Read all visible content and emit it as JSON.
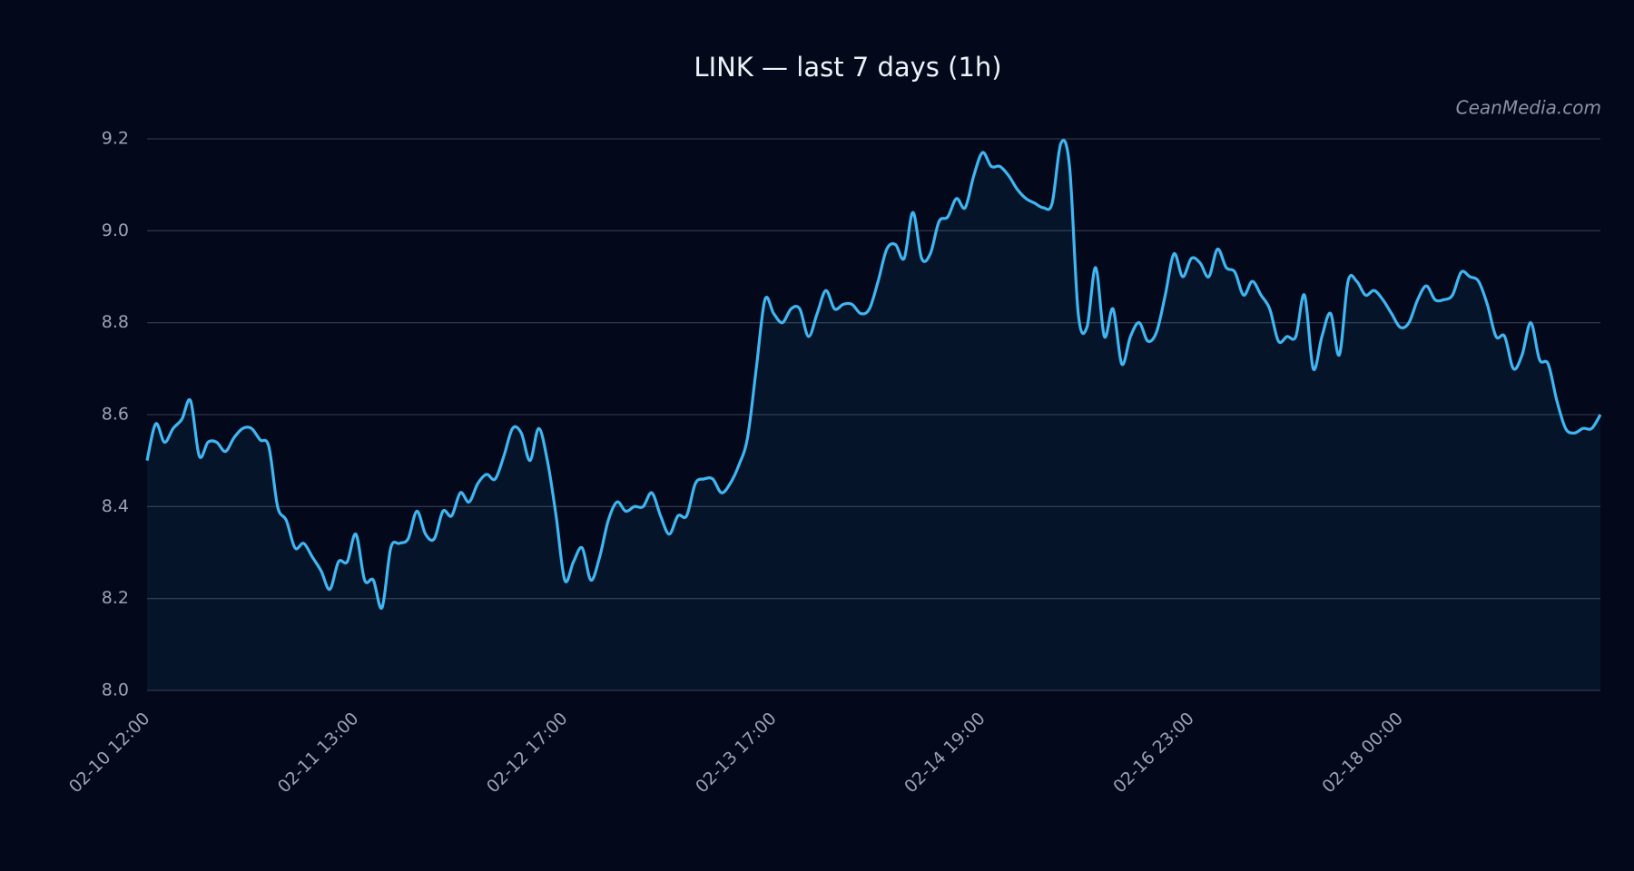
{
  "chart_data": {
    "type": "line",
    "title": "LINK — last 7 days (1h)",
    "watermark": "CeanMedia.com",
    "categories": [
      "02-10 12:00",
      null,
      null,
      null,
      null,
      null,
      null,
      null,
      null,
      null,
      null,
      null,
      null,
      null,
      null,
      null,
      null,
      null,
      null,
      null,
      null,
      null,
      null,
      null,
      "02-11 13:00",
      null,
      null,
      null,
      null,
      null,
      null,
      null,
      null,
      null,
      null,
      null,
      null,
      null,
      null,
      null,
      null,
      null,
      null,
      null,
      null,
      null,
      null,
      null,
      "02-12 17:00",
      null,
      null,
      null,
      null,
      null,
      null,
      null,
      null,
      null,
      null,
      null,
      null,
      null,
      null,
      null,
      null,
      null,
      null,
      null,
      null,
      null,
      null,
      null,
      "02-13 17:00",
      null,
      null,
      null,
      null,
      null,
      null,
      null,
      null,
      null,
      null,
      null,
      null,
      null,
      null,
      null,
      null,
      null,
      null,
      null,
      null,
      null,
      null,
      null,
      "02-14 19:00",
      null,
      null,
      null,
      null,
      null,
      null,
      null,
      null,
      null,
      null,
      null,
      null,
      null,
      null,
      null,
      null,
      null,
      null,
      null,
      null,
      null,
      null,
      null,
      "02-16 23:00",
      null,
      null,
      null,
      null,
      null,
      null,
      null,
      null,
      null,
      null,
      null,
      null,
      null,
      null,
      null,
      null,
      null,
      null,
      null,
      null,
      null,
      null,
      null,
      "02-18 00:00",
      null,
      null,
      null,
      null,
      null,
      null,
      null,
      null,
      null,
      null,
      null,
      null,
      null,
      null,
      null,
      null,
      null,
      null,
      null,
      null,
      null,
      null,
      null
    ],
    "values": [
      8.5,
      8.58,
      8.54,
      8.57,
      8.59,
      8.63,
      8.51,
      8.54,
      8.54,
      8.52,
      8.55,
      8.57,
      8.57,
      8.545,
      8.53,
      8.4,
      8.37,
      8.31,
      8.32,
      8.29,
      8.26,
      8.22,
      8.28,
      8.28,
      8.34,
      8.24,
      8.24,
      8.18,
      8.31,
      8.32,
      8.33,
      8.39,
      8.34,
      8.33,
      8.39,
      8.38,
      8.43,
      8.41,
      8.45,
      8.47,
      8.46,
      8.51,
      8.57,
      8.56,
      8.5,
      8.57,
      8.5,
      8.38,
      8.24,
      8.28,
      8.31,
      8.24,
      8.29,
      8.37,
      8.41,
      8.39,
      8.4,
      8.4,
      8.43,
      8.38,
      8.34,
      8.38,
      8.38,
      8.45,
      8.46,
      8.46,
      8.43,
      8.45,
      8.49,
      8.55,
      8.7,
      8.85,
      8.82,
      8.8,
      8.83,
      8.83,
      8.77,
      8.82,
      8.87,
      8.83,
      8.84,
      8.84,
      8.82,
      8.83,
      8.89,
      8.96,
      8.97,
      8.94,
      9.04,
      8.94,
      8.95,
      9.02,
      9.03,
      9.07,
      9.05,
      9.12,
      9.17,
      9.14,
      9.14,
      9.12,
      9.09,
      9.07,
      9.06,
      9.05,
      9.06,
      9.19,
      9.14,
      8.82,
      8.79,
      8.92,
      8.77,
      8.83,
      8.71,
      8.77,
      8.8,
      8.76,
      8.78,
      8.86,
      8.95,
      8.9,
      8.94,
      8.93,
      8.9,
      8.96,
      8.92,
      8.91,
      8.86,
      8.89,
      8.86,
      8.83,
      8.76,
      8.77,
      8.77,
      8.86,
      8.7,
      8.77,
      8.82,
      8.73,
      8.89,
      8.89,
      8.86,
      8.87,
      8.85,
      8.82,
      8.79,
      8.8,
      8.85,
      8.88,
      8.85,
      8.85,
      8.86,
      8.91,
      8.9,
      8.89,
      8.84,
      8.77,
      8.77,
      8.7,
      8.73,
      8.8,
      8.72,
      8.71,
      8.63,
      8.57,
      8.56,
      8.57,
      8.57,
      8.6
    ],
    "color": "#3fb6f2",
    "ylim": [
      8.0,
      9.2
    ],
    "yticks": [
      {
        "value": 8,
        "label": "8.0"
      },
      8.2,
      8.4,
      8.6,
      8.8,
      {
        "value": 9,
        "label": "9.0"
      },
      9.2
    ],
    "grid": true
  }
}
